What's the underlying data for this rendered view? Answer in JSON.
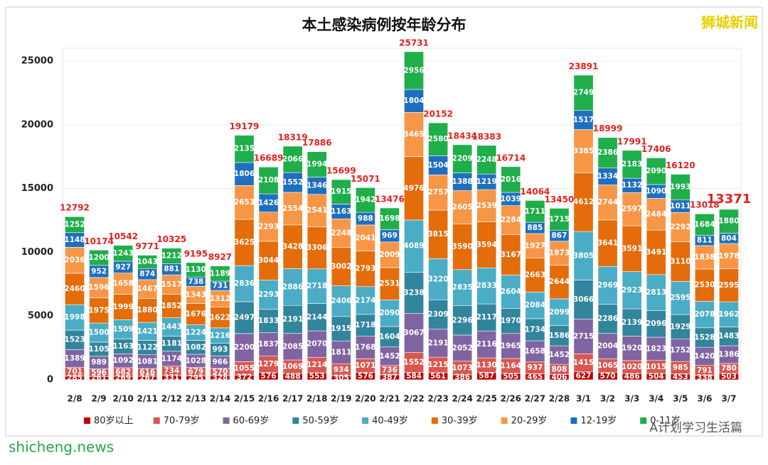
{
  "chart_data": {
    "type": "stacked_bar",
    "title": "本土感染病例按年龄分布",
    "categories": [
      "2/8",
      "2/9",
      "2/10",
      "2/11",
      "2/12",
      "2/13",
      "2/14",
      "2/15",
      "2/16",
      "2/17",
      "2/18",
      "2/19",
      "2/20",
      "2/21",
      "2/22",
      "2/23",
      "2/24",
      "2/25",
      "2/26",
      "2/27",
      "2/28",
      "3/1",
      "3/2",
      "3/3",
      "3/4",
      "3/5",
      "3/6",
      "3/7"
    ],
    "series": [
      {
        "name": "80岁以上",
        "color": "#c00000",
        "values": [
          285,
          261,
          269,
          267,
          331,
          295,
          328,
          372,
          576,
          488,
          553,
          305,
          576,
          387,
          584,
          561,
          386,
          587,
          505,
          465,
          406,
          627,
          570,
          486,
          504,
          453,
          338,
          503
        ]
      },
      {
        "name": "70-79岁",
        "color": "#d9574f",
        "values": [
          701,
          596,
          682,
          616,
          734,
          679,
          570,
          1055,
          1279,
          1069,
          1214,
          934,
          1071,
          736,
          1552,
          1215,
          1073,
          1130,
          1164,
          937,
          808,
          1415,
          1065,
          1020,
          1015,
          985,
          791,
          780
        ]
      },
      {
        "name": "60-69岁",
        "color": "#8064a2",
        "values": [
          1389,
          989,
          1092,
          1081,
          1174,
          1028,
          966,
          2200,
          1837,
          2085,
          2070,
          1811,
          1768,
          1452,
          3067,
          2191,
          2052,
          2116,
          1965,
          1658,
          1452,
          2715,
          2004,
          1920,
          1823,
          1752,
          1420,
          1386
        ]
      },
      {
        "name": "50-59岁",
        "color": "#31859c",
        "values": [
          1523,
          1105,
          1163,
          1122,
          1181,
          1082,
          993,
          2497,
          1833,
          2191,
          2144,
          1915,
          1718,
          1604,
          3238,
          2309,
          2296,
          2117,
          1970,
          1734,
          1586,
          3066,
          2286,
          2139,
          2096,
          1929,
          1528,
          1483
        ]
      },
      {
        "name": "40-49岁",
        "color": "#4bacc6",
        "values": [
          1998,
          1500,
          1509,
          1421,
          1443,
          1224,
          1216,
          2836,
          2293,
          2886,
          2718,
          2406,
          2174,
          2090,
          4089,
          3220,
          2835,
          2833,
          2604,
          2084,
          2099,
          3805,
          2969,
          2923,
          2813,
          2595,
          2078,
          1962
        ]
      },
      {
        "name": "30-39岁",
        "color": "#e46c0a",
        "values": [
          2460,
          1975,
          1999,
          1880,
          1852,
          1676,
          1622,
          3625,
          3044,
          3428,
          3306,
          3002,
          2793,
          2531,
          4976,
          3815,
          3590,
          3594,
          3167,
          2663,
          2644,
          4612,
          3641,
          3591,
          3491,
          3110,
          2530,
          2595
        ]
      },
      {
        "name": "20-29岁",
        "color": "#f79646",
        "values": [
          2036,
          1596,
          1658,
          1467,
          1517,
          1343,
          1312,
          2653,
          2293,
          2554,
          2541,
          2248,
          2041,
          2009,
          3465,
          2757,
          2605,
          2539,
          2284,
          1927,
          1873,
          3385,
          2744,
          2597,
          2484,
          2292,
          1838,
          1978
        ]
      },
      {
        "name": "12-19岁",
        "color": "#1f6fbf",
        "values": [
          1148,
          952,
          927,
          874,
          881,
          738,
          731,
          1806,
          1426,
          1552,
          1346,
          1163,
          988,
          969,
          1804,
          1504,
          1388,
          1219,
          1039,
          885,
          867,
          1517,
          1334,
          1132,
          1090,
          1011,
          811,
          804
        ]
      },
      {
        "name": "0-11岁",
        "color": "#1fae4a",
        "values": [
          1252,
          1200,
          1243,
          1043,
          1212,
          1130,
          1189,
          2135,
          2108,
          2066,
          1994,
          1915,
          1942,
          1698,
          2956,
          2580,
          2209,
          2248,
          2016,
          1711,
          1715,
          2749,
          2386,
          2183,
          2090,
          1993,
          1684,
          1880
        ]
      }
    ],
    "totals": [
      12792,
      10174,
      10542,
      9771,
      10325,
      9195,
      8927,
      19179,
      16689,
      18319,
      17886,
      15699,
      15071,
      13476,
      25731,
      20152,
      18434,
      18383,
      16714,
      14064,
      13450,
      23891,
      18999,
      17991,
      17406,
      16120,
      13018,
      13371
    ],
    "ylim": [
      0,
      26000
    ],
    "yticks": [
      0,
      5000,
      10000,
      15000,
      20000,
      25000
    ],
    "grid": true,
    "legend": "bottom"
  },
  "watermarks": {
    "brand": "狮城新闻",
    "site": "shicheng.news",
    "account": "A计划学习生活篇"
  }
}
